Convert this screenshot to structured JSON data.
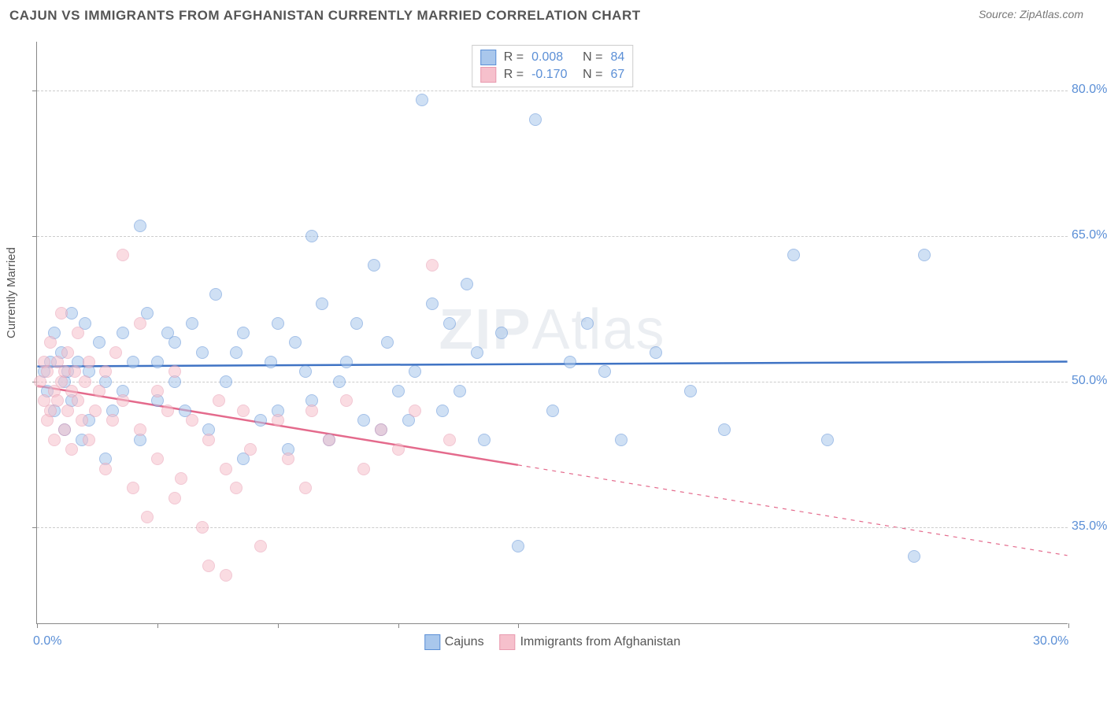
{
  "header": {
    "title": "CAJUN VS IMMIGRANTS FROM AFGHANISTAN CURRENTLY MARRIED CORRELATION CHART",
    "source": "Source: ZipAtlas.com"
  },
  "watermark": {
    "bold": "ZIP",
    "light": "Atlas"
  },
  "chart": {
    "type": "scatter",
    "ylabel": "Currently Married",
    "background_color": "#ffffff",
    "grid_color": "#cccccc",
    "axis_color": "#888888",
    "text_color": "#555555",
    "tick_color": "#5b8fd6",
    "xlim": [
      0,
      30
    ],
    "ylim": [
      25,
      85
    ],
    "ytick_values": [
      35,
      50,
      65,
      80
    ],
    "ytick_labels": [
      "35.0%",
      "50.0%",
      "65.0%",
      "80.0%"
    ],
    "xtick_values": [
      0,
      3.5,
      7,
      10.5,
      14,
      30
    ],
    "xtick_labels": {
      "0": "0.0%",
      "30": "30.0%"
    },
    "marker_radius": 8,
    "marker_opacity": 0.55,
    "series": [
      {
        "name": "Cajuns",
        "color_fill": "#a9c7ec",
        "color_stroke": "#5b8fd6",
        "R": "0.008",
        "N": "84",
        "trend": {
          "y_at_x0": 51.5,
          "y_at_x30": 52.0,
          "solid_until_x": 30,
          "line_color": "#3f73c4",
          "line_width": 2.5
        },
        "points": [
          [
            0.2,
            51
          ],
          [
            0.3,
            49
          ],
          [
            0.4,
            52
          ],
          [
            0.5,
            47
          ],
          [
            0.5,
            55
          ],
          [
            0.7,
            53
          ],
          [
            0.8,
            50
          ],
          [
            0.8,
            45
          ],
          [
            0.9,
            51
          ],
          [
            1.0,
            57
          ],
          [
            1.0,
            48
          ],
          [
            1.2,
            52
          ],
          [
            1.3,
            44
          ],
          [
            1.4,
            56
          ],
          [
            1.5,
            51
          ],
          [
            1.5,
            46
          ],
          [
            1.8,
            54
          ],
          [
            2.0,
            50
          ],
          [
            2.0,
            42
          ],
          [
            2.2,
            47
          ],
          [
            2.5,
            55
          ],
          [
            2.5,
            49
          ],
          [
            2.8,
            52
          ],
          [
            3.0,
            44
          ],
          [
            3.0,
            66
          ],
          [
            3.2,
            57
          ],
          [
            3.5,
            48
          ],
          [
            3.5,
            52
          ],
          [
            3.8,
            55
          ],
          [
            4.0,
            50
          ],
          [
            4.0,
            54
          ],
          [
            4.3,
            47
          ],
          [
            4.5,
            56
          ],
          [
            4.8,
            53
          ],
          [
            5.0,
            45
          ],
          [
            5.2,
            59
          ],
          [
            5.5,
            50
          ],
          [
            5.8,
            53
          ],
          [
            6.0,
            55
          ],
          [
            6.0,
            42
          ],
          [
            6.5,
            46
          ],
          [
            6.8,
            52
          ],
          [
            7.0,
            56
          ],
          [
            7.0,
            47
          ],
          [
            7.3,
            43
          ],
          [
            7.5,
            54
          ],
          [
            7.8,
            51
          ],
          [
            8.0,
            65
          ],
          [
            8.0,
            48
          ],
          [
            8.3,
            58
          ],
          [
            8.5,
            44
          ],
          [
            8.8,
            50
          ],
          [
            9.0,
            52
          ],
          [
            9.3,
            56
          ],
          [
            9.5,
            46
          ],
          [
            9.8,
            62
          ],
          [
            10.0,
            45
          ],
          [
            10.2,
            54
          ],
          [
            10.5,
            49
          ],
          [
            10.8,
            46
          ],
          [
            11.0,
            51
          ],
          [
            11.2,
            79
          ],
          [
            11.5,
            58
          ],
          [
            11.8,
            47
          ],
          [
            12.0,
            56
          ],
          [
            12.3,
            49
          ],
          [
            12.5,
            60
          ],
          [
            12.8,
            53
          ],
          [
            13.0,
            44
          ],
          [
            13.5,
            55
          ],
          [
            14.0,
            33
          ],
          [
            14.5,
            77
          ],
          [
            15.0,
            47
          ],
          [
            15.5,
            52
          ],
          [
            16.0,
            56
          ],
          [
            16.5,
            51
          ],
          [
            17.0,
            44
          ],
          [
            18.0,
            53
          ],
          [
            19.0,
            49
          ],
          [
            20.0,
            45
          ],
          [
            22.0,
            63
          ],
          [
            23.0,
            44
          ],
          [
            25.5,
            32
          ],
          [
            25.8,
            63
          ]
        ]
      },
      {
        "name": "Immigrants from Afghanistan",
        "color_fill": "#f6c0cc",
        "color_stroke": "#e89bb0",
        "R": "-0.170",
        "N": "67",
        "trend": {
          "y_at_x0": 49.5,
          "y_at_x30": 32.0,
          "solid_until_x": 14,
          "line_color": "#e46a8c",
          "line_width": 2.5
        },
        "points": [
          [
            0.1,
            50
          ],
          [
            0.2,
            48
          ],
          [
            0.2,
            52
          ],
          [
            0.3,
            46
          ],
          [
            0.3,
            51
          ],
          [
            0.4,
            54
          ],
          [
            0.4,
            47
          ],
          [
            0.5,
            49
          ],
          [
            0.5,
            44
          ],
          [
            0.6,
            52
          ],
          [
            0.6,
            48
          ],
          [
            0.7,
            50
          ],
          [
            0.7,
            57
          ],
          [
            0.8,
            45
          ],
          [
            0.8,
            51
          ],
          [
            0.9,
            53
          ],
          [
            0.9,
            47
          ],
          [
            1.0,
            49
          ],
          [
            1.0,
            43
          ],
          [
            1.1,
            51
          ],
          [
            1.2,
            48
          ],
          [
            1.2,
            55
          ],
          [
            1.3,
            46
          ],
          [
            1.4,
            50
          ],
          [
            1.5,
            44
          ],
          [
            1.5,
            52
          ],
          [
            1.7,
            47
          ],
          [
            1.8,
            49
          ],
          [
            2.0,
            51
          ],
          [
            2.0,
            41
          ],
          [
            2.2,
            46
          ],
          [
            2.3,
            53
          ],
          [
            2.5,
            48
          ],
          [
            2.5,
            63
          ],
          [
            2.8,
            39
          ],
          [
            3.0,
            45
          ],
          [
            3.0,
            56
          ],
          [
            3.2,
            36
          ],
          [
            3.5,
            42
          ],
          [
            3.5,
            49
          ],
          [
            3.8,
            47
          ],
          [
            4.0,
            38
          ],
          [
            4.0,
            51
          ],
          [
            4.2,
            40
          ],
          [
            4.5,
            46
          ],
          [
            4.8,
            35
          ],
          [
            5.0,
            31
          ],
          [
            5.0,
            44
          ],
          [
            5.3,
            48
          ],
          [
            5.5,
            30
          ],
          [
            5.5,
            41
          ],
          [
            5.8,
            39
          ],
          [
            6.0,
            47
          ],
          [
            6.2,
            43
          ],
          [
            6.5,
            33
          ],
          [
            7.0,
            46
          ],
          [
            7.3,
            42
          ],
          [
            7.8,
            39
          ],
          [
            8.0,
            47
          ],
          [
            8.5,
            44
          ],
          [
            9.0,
            48
          ],
          [
            9.5,
            41
          ],
          [
            10.0,
            45
          ],
          [
            10.5,
            43
          ],
          [
            11.0,
            47
          ],
          [
            11.5,
            62
          ],
          [
            12.0,
            44
          ]
        ]
      }
    ],
    "legend_top": {
      "R_label": "R = ",
      "N_label": "N = "
    },
    "legend_bottom": [
      {
        "label": "Cajuns",
        "fill": "#a9c7ec",
        "stroke": "#5b8fd6"
      },
      {
        "label": "Immigrants from Afghanistan",
        "fill": "#f6c0cc",
        "stroke": "#e89bb0"
      }
    ]
  }
}
